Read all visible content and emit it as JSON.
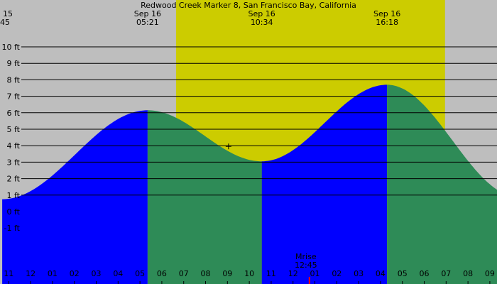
{
  "title": "Redwood Creek Marker 8, San Francisco Bay, California",
  "colors": {
    "night": "#bebebe",
    "day": "#cccc00",
    "rising": "#0000ff",
    "falling": "#2e8b57",
    "gridline": "#000000",
    "moon_marker": "#ff0000"
  },
  "chart_data": {
    "type": "area",
    "title": "Redwood Creek Marker 8, San Francisco Bay, California",
    "xlabel": "",
    "ylabel": "",
    "y_unit": "ft",
    "ylim": [
      -2.0,
      12.0
    ],
    "xlim": [
      10.6,
      33.1
    ],
    "y_ticks": [
      10,
      9,
      8,
      7,
      6,
      5,
      4,
      3,
      2,
      1,
      0,
      -1
    ],
    "y_tick_labels": [
      "10 ft",
      "9 ft",
      "8 ft",
      "7 ft",
      "6 ft",
      "5 ft",
      "4 ft",
      "3 ft",
      "2 ft",
      "1 ft",
      "0 ft",
      "-1 ft"
    ],
    "x_ticks": [
      11,
      12,
      13,
      14,
      15,
      16,
      17,
      18,
      19,
      20,
      21,
      22,
      23,
      24,
      25,
      26,
      27,
      28,
      29,
      30,
      31,
      32,
      33
    ],
    "x_tick_labels": [
      "11",
      "12",
      "01",
      "02",
      "03",
      "04",
      "05",
      "06",
      "07",
      "08",
      "09",
      "10",
      "11",
      "12",
      "01",
      "02",
      "03",
      "04",
      "05",
      "06",
      "07",
      "08",
      "09"
    ],
    "daylight": {
      "start": 18.65,
      "end": 30.95
    },
    "tide_events": [
      {
        "date": "15",
        "time": "45",
        "hour": 10.7,
        "height": 0.75,
        "type": "low",
        "clipped": true
      },
      {
        "date": "Sep 16",
        "time": "05:21",
        "hour": 17.35,
        "height": 6.15,
        "type": "high"
      },
      {
        "date": "Sep 16",
        "time": "10:34",
        "hour": 22.57,
        "height": 3.05,
        "type": "low"
      },
      {
        "date": "Sep 16",
        "time": "16:18",
        "hour": 28.3,
        "height": 7.7,
        "type": "high"
      },
      {
        "date": "",
        "time": "",
        "hour": 34.3,
        "height": 0.9,
        "type": "low",
        "offscreen": true
      }
    ],
    "moon": {
      "label": "Mrise",
      "time": "12:45",
      "hour": 24.75
    },
    "current_marker": {
      "hour": 21.05,
      "height": 4.0
    }
  }
}
